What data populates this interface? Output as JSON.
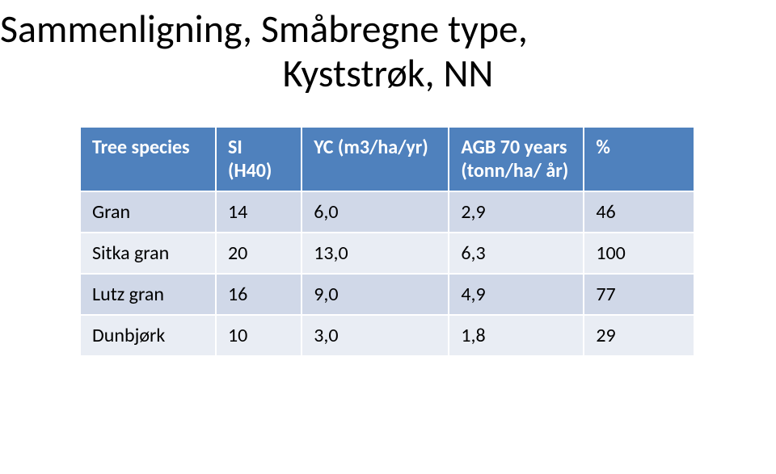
{
  "title": {
    "line1": "Sammenligning, Småbregne type,",
    "line2": "Kyststrøk, NN"
  },
  "table": {
    "header_bg": "#4f81bd",
    "header_fg": "#ffffff",
    "row_odd_bg": "#d0d8e8",
    "row_even_bg": "#e9edf4",
    "border_color": "#ffffff",
    "columns": [
      "Tree species",
      "SI (H40)",
      "YC (m3/ha/yr)",
      "AGB 70 years (tonn/ha/ år)",
      "%"
    ],
    "rows": [
      {
        "species": "Gran",
        "si": "14",
        "yc": "6,0",
        "agb": "2,9",
        "pct": "46"
      },
      {
        "species": "Sitka gran",
        "si": "20",
        "yc": "13,0",
        "agb": "6,3",
        "pct": "100"
      },
      {
        "species": "Lutz gran",
        "si": "16",
        "yc": "9,0",
        "agb": "4,9",
        "pct": "77"
      },
      {
        "species": "Dunbjørk",
        "si": "10",
        "yc": "3,0",
        "agb": "1,8",
        "pct": "29"
      }
    ]
  }
}
